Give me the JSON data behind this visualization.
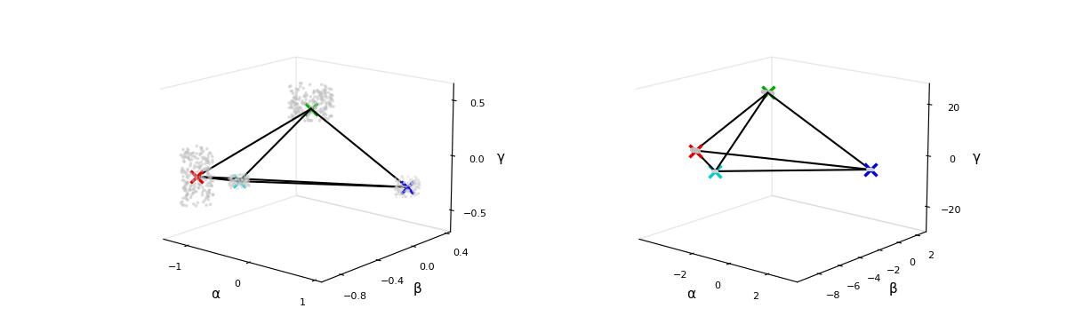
{
  "fig_width": 12.18,
  "fig_height": 3.74,
  "background_color": "white",
  "left_plot": {
    "vertices": {
      "green": [
        -0.5,
        0.0,
        0.35
      ],
      "red": [
        -1.15,
        -0.8,
        -0.15
      ],
      "cyan": [
        -0.85,
        -0.55,
        -0.22
      ],
      "blue": [
        1.0,
        0.0,
        -0.18
      ]
    },
    "edges": [
      [
        "green",
        "red"
      ],
      [
        "green",
        "cyan"
      ],
      [
        "green",
        "blue"
      ],
      [
        "red",
        "cyan"
      ],
      [
        "red",
        "blue"
      ],
      [
        "cyan",
        "blue"
      ]
    ],
    "xlabel": "α",
    "ylabel": "β",
    "zlabel": "γ",
    "xlim": [
      -1.4,
      1.1
    ],
    "ylim": [
      -1.0,
      0.45
    ],
    "zlim": [
      -0.7,
      0.65
    ],
    "xticks": [
      -1,
      0,
      1
    ],
    "yticks": [
      -0.8,
      -0.4,
      0,
      0.4
    ],
    "zticks": [
      -0.5,
      0,
      0.5
    ],
    "elev": 15,
    "azim": -50
  },
  "right_plot": {
    "vertices": {
      "green": [
        -3.0,
        -1.0,
        20.0
      ],
      "red": [
        -4.5,
        -5.5,
        0.0
      ],
      "cyan": [
        -3.8,
        -4.8,
        -8.0
      ],
      "blue": [
        2.5,
        -1.0,
        -2.0
      ]
    },
    "edges": [
      [
        "green",
        "red"
      ],
      [
        "green",
        "cyan"
      ],
      [
        "green",
        "blue"
      ],
      [
        "red",
        "cyan"
      ],
      [
        "red",
        "blue"
      ],
      [
        "cyan",
        "blue"
      ]
    ],
    "xlabel": "α",
    "ylabel": "β",
    "zlabel": "γ",
    "xlim": [
      -5.0,
      3.5
    ],
    "ylim": [
      -10.0,
      3.0
    ],
    "zlim": [
      -30.0,
      28.0
    ],
    "xticks": [
      -2,
      0,
      2
    ],
    "yticks": [
      -8,
      -6,
      -4,
      -2,
      0,
      2
    ],
    "zticks": [
      -20,
      0,
      20
    ],
    "elev": 15,
    "azim": -50
  },
  "vertex_colors": {
    "green": "#00aa00",
    "red": "#dd0000",
    "cyan": "#00cccc",
    "blue": "#0000dd"
  },
  "edge_color": "black",
  "edge_linewidth": 1.5,
  "marker_size": 100,
  "marker_style": "x",
  "marker_linewidth": 2.5
}
